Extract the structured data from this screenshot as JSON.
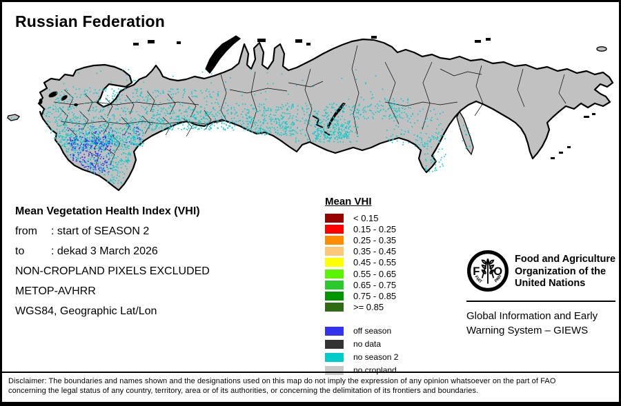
{
  "title": "Russian Federation",
  "map": {
    "land": "#C1C1C1",
    "neighbor_land": "#D6D6D6",
    "outline": "#000000",
    "lake": "#000000"
  },
  "info": {
    "heading": "Mean Vegetation Health Index (VHI)",
    "rows": [
      {
        "label": "from",
        "value": ": start of SEASON 2"
      },
      {
        "label": "to",
        "value": ": dekad 3 March 2026"
      }
    ],
    "lines": [
      "NON-CROPLAND PIXELS EXCLUDED",
      "METOP-AVHRR",
      "WGS84, Geographic Lat/Lon"
    ]
  },
  "legend": {
    "title": "Mean VHI",
    "classes": [
      {
        "label": "< 0.15",
        "color": "#990000"
      },
      {
        "label": "0.15 - 0.25",
        "color": "#FF0000"
      },
      {
        "label": "0.25 - 0.35",
        "color": "#FF8C00"
      },
      {
        "label": "0.35 - 0.45",
        "color": "#FAC878"
      },
      {
        "label": "0.45 - 0.55",
        "color": "#FFFF00"
      },
      {
        "label": "0.55 - 0.65",
        "color": "#58F400"
      },
      {
        "label": "0.65 - 0.75",
        "color": "#2BC82B"
      },
      {
        "label": "0.75 - 0.85",
        "color": "#009600"
      },
      {
        "label": ">= 0.85",
        "color": "#2E6B12"
      }
    ],
    "extra": [
      {
        "label": "off season",
        "color": "#3333EE"
      },
      {
        "label": "no data",
        "color": "#333333"
      },
      {
        "label": "no season 2",
        "color": "#00CCCC"
      },
      {
        "label": "no cropland",
        "color": "#C8C8C8"
      }
    ]
  },
  "branding": {
    "logo_motto": [
      "FIAT",
      "PANIS"
    ],
    "logo_letters": [
      "F",
      "O"
    ],
    "org_lines": [
      "Food and Agriculture",
      "Organization of the",
      "United Nations"
    ],
    "giews_lines": [
      "Global Information and Early",
      "Warning System – GIEWS"
    ]
  },
  "disclaimer": {
    "lines": [
      "Disclaimer: The boundaries and names shown and the designations used on this map do not imply the expression of any opinion whatsoever on the part of FAO",
      "concerning the legal status of any country, territory, area or of its authorities, or concerning the delimitation of its frontiers and boundaries."
    ]
  }
}
